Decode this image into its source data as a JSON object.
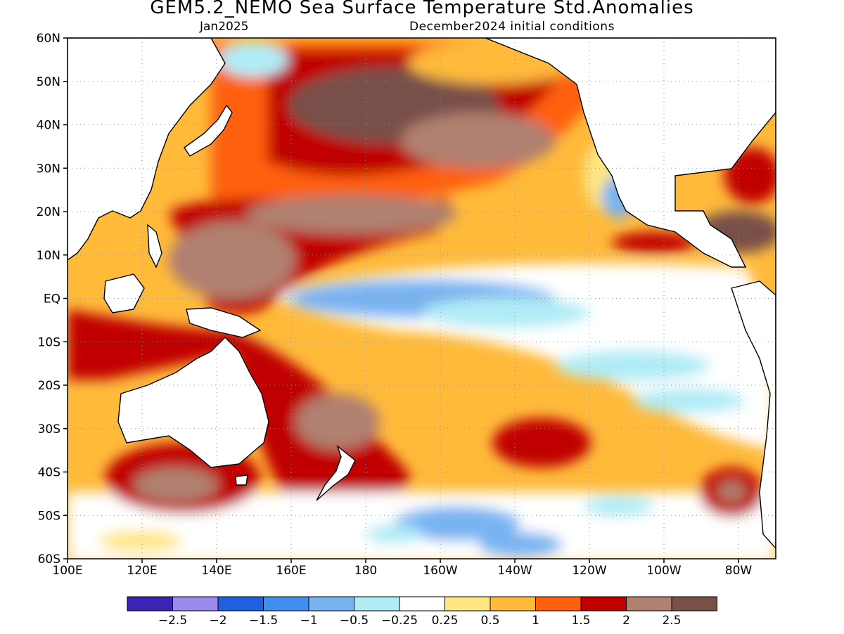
{
  "header": {
    "title": "GEM5.2_NEMO Sea Surface Temperature Std.Anomalies",
    "forecast_month": "Jan2025",
    "initial_conditions": "December2024 initial conditions"
  },
  "map": {
    "lat_labels": [
      "60N",
      "50N",
      "40N",
      "30N",
      "20N",
      "10N",
      "EQ",
      "10S",
      "20S",
      "30S",
      "40S",
      "50S",
      "60S"
    ],
    "lon_labels": [
      "100E",
      "120E",
      "140E",
      "160E",
      "180",
      "160W",
      "140W",
      "120W",
      "100W",
      "80W"
    ],
    "lon_range": [
      100,
      290
    ],
    "lat_range": [
      -60,
      60
    ],
    "grid": true
  },
  "colorbar": {
    "colors": [
      "#3a23b5",
      "#9a88ef",
      "#2060e0",
      "#3f8ff0",
      "#78b4f2",
      "#b0ecf6",
      "#ffffff",
      "#ffe680",
      "#ffba3a",
      "#ff6010",
      "#c00000",
      "#b08070",
      "#785048"
    ],
    "tick_labels": [
      "−2.5",
      "−2",
      "−1.5",
      "−1",
      "−0.5",
      "−0.25",
      "0.25",
      "0.5",
      "1",
      "1.5",
      "2",
      "2.5"
    ]
  }
}
